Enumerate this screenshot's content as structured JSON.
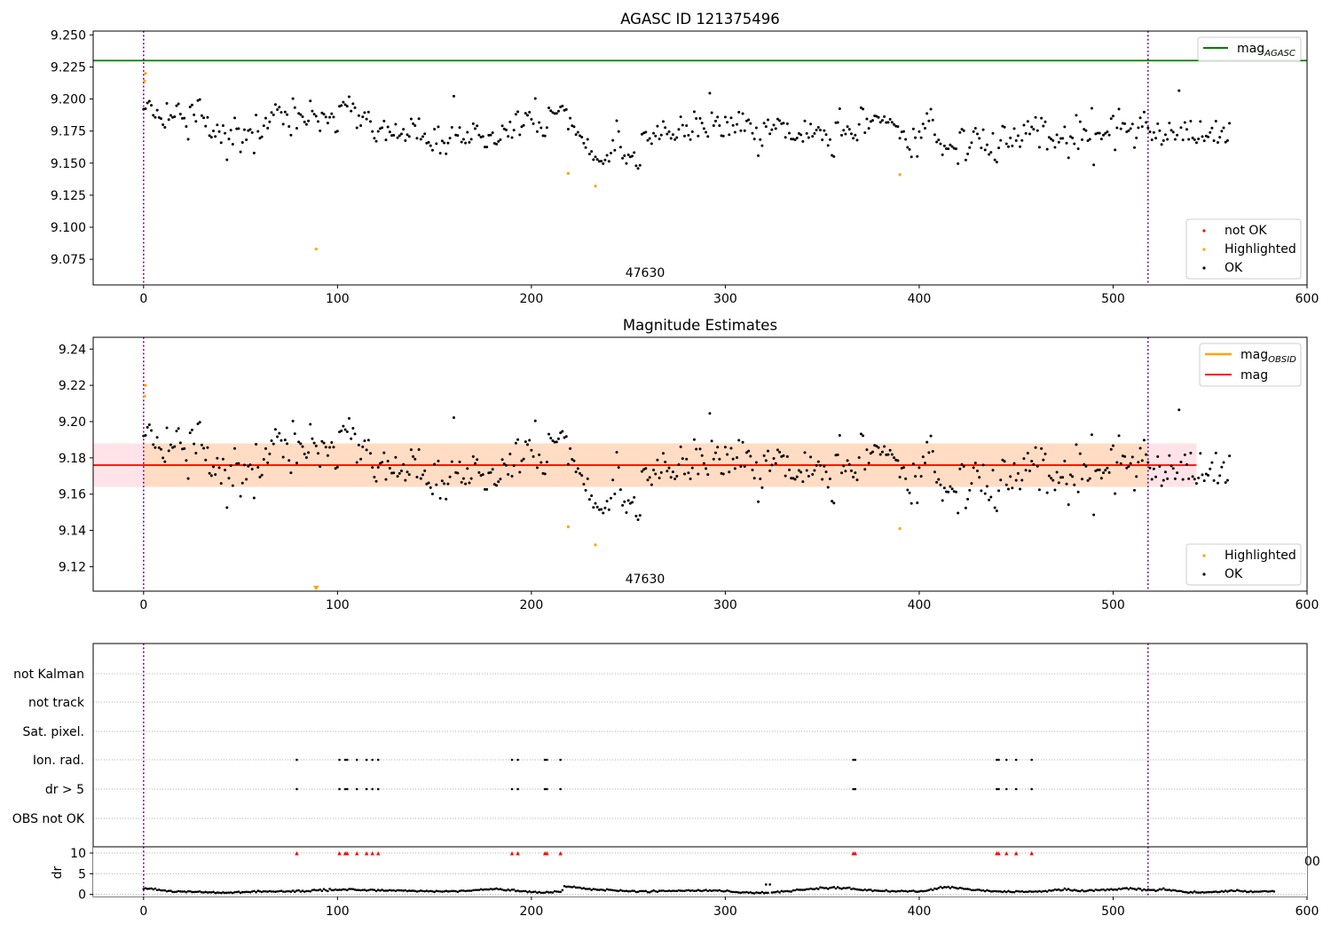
{
  "chart_data": [
    {
      "type": "scatter",
      "title": "AGASC ID 121375496",
      "annotation": "47630",
      "xlim": [
        -26,
        600
      ],
      "ylim": [
        9.055,
        9.253
      ],
      "xticks": [
        "0",
        "100",
        "200",
        "300",
        "400",
        "500",
        "600"
      ],
      "yticks": [
        "9.075",
        "9.100",
        "9.125",
        "9.150",
        "9.175",
        "9.200",
        "9.225",
        "9.250"
      ],
      "vlines": [
        0,
        518
      ],
      "hline": {
        "label_main": "mag",
        "label_sub": "AGASC",
        "value": 9.23,
        "color": "#008000"
      },
      "legend_upper": "top-right",
      "legend_lower": "bottom-right",
      "legend": [
        {
          "label": "not OK",
          "color": "#ff0000"
        },
        {
          "label": "Highlighted",
          "color": "#ffa500"
        },
        {
          "label": "OK",
          "color": "#000000"
        }
      ],
      "highlighted": [
        {
          "x": 0.5,
          "y": 9.214
        },
        {
          "x": 1,
          "y": 9.22
        },
        {
          "x": 89,
          "y": 9.083
        },
        {
          "x": 219,
          "y": 9.142
        },
        {
          "x": 233,
          "y": 9.132
        },
        {
          "x": 390,
          "y": 9.141
        }
      ],
      "ok_series": "magnitudes (see shared_series)"
    },
    {
      "type": "scatter",
      "title": "Magnitude Estimates",
      "annotation": "47630",
      "xlim": [
        -26,
        600
      ],
      "ylim": [
        9.1065,
        9.2465
      ],
      "xticks": [
        "0",
        "100",
        "200",
        "300",
        "400",
        "500",
        "600"
      ],
      "yticks": [
        "9.12",
        "9.14",
        "9.16",
        "9.18",
        "9.20",
        "9.22",
        "9.24"
      ],
      "vlines": [
        0,
        518
      ],
      "legend_upper": "top-right",
      "legend_lower": "bottom-right",
      "lines": [
        {
          "label_main": "mag",
          "label_sub": "OBSID",
          "color": "#ffa500"
        },
        {
          "label_main": "mag",
          "label_sub": "",
          "color": "#ff0000",
          "value": 9.176
        }
      ],
      "band": {
        "low": 9.164,
        "high": 9.188,
        "x0": -26,
        "x1": 543,
        "color": "#ffc0cb"
      },
      "band_inner": {
        "low": 9.164,
        "high": 9.188,
        "x0": 0,
        "x1": 518,
        "color": "#ffdab9"
      },
      "legend": [
        {
          "label": "Highlighted",
          "color": "#ffa500"
        },
        {
          "label": "OK",
          "color": "#000000"
        }
      ],
      "highlighted": [
        {
          "x": 0.5,
          "y": 9.214
        },
        {
          "x": 1,
          "y": 9.22
        },
        {
          "x": 219,
          "y": 9.142
        },
        {
          "x": 233,
          "y": 9.132
        },
        {
          "x": 390,
          "y": 9.141
        }
      ],
      "off_scale_marker": {
        "x": 89,
        "direction": "down"
      }
    },
    {
      "type": "scatter",
      "xlim": [
        -26,
        600
      ],
      "xticks": [
        "0",
        "100",
        "200",
        "300",
        "400",
        "500",
        "600"
      ],
      "vlines": [
        0,
        518
      ],
      "categories": [
        "not Kalman",
        "not track",
        "Sat. pixel.",
        "Ion. rad.",
        "dr > 5",
        "OBS not OK"
      ],
      "flag_x": [
        79,
        101,
        104,
        105,
        110,
        115,
        118,
        121,
        190,
        193,
        207,
        208,
        215,
        366,
        367,
        440,
        441,
        445,
        450,
        458
      ],
      "flags": {
        "Ion. rad.": true,
        "dr > 5": true
      }
    },
    {
      "type": "scatter",
      "ylabel": "dr",
      "xlim": [
        -26,
        600
      ],
      "ylim": [
        -0.5,
        11.5
      ],
      "yticks": [
        "0",
        "5",
        "10"
      ],
      "overflow_markers_at": 10,
      "stray_tick_label": "00",
      "dr_outlier": {
        "x": 321,
        "y": 2.4
      }
    }
  ],
  "shared_series": {
    "n_points": 518,
    "magnitudes": [
      9.1921,
      9.1924,
      9.1969,
      9.1983,
      9.1951,
      9.1873,
      9.1857,
      9.1913,
      9.1856,
      9.1847,
      9.18,
      9.1779,
      9.1966,
      9.1839,
      9.1872,
      9.1857,
      9.1862,
      9.1948,
      9.1962,
      9.1883,
      9.1849,
      9.1851,
      9.1786,
      9.1686,
      9.1938,
      9.1954,
      9.1877,
      9.1826,
      9.1988,
      9.1996,
      9.1871,
      9.1853,
      9.1788,
      9.1857,
      9.1715,
      9.1702,
      9.1751,
      9.1708,
      9.1798,
      9.1746,
      9.1659,
      9.1793,
      9.1733,
      9.1526,
      9.1688,
      9.1757,
      9.1647,
      9.1852,
      9.1768,
      9.1769,
      9.1588,
      9.1661,
      9.1761,
      9.1682,
      9.1754,
      9.1762,
      9.1738,
      9.1579,
      9.1875,
      9.1748,
      9.1694,
      9.1705,
      9.1792,
      9.1851,
      9.1773,
      9.1822,
      9.1895,
      9.1877,
      9.1957,
      9.1917,
      9.1936,
      9.1896,
      9.1804,
      9.1899,
      9.1878,
      9.1786,
      9.1718,
      9.2003,
      9.1933,
      9.1772,
      9.1888,
      9.1878,
      9.1862,
      9.1821,
      9.1802,
      9.1829,
      9.1985,
      9.1906,
      9.1882,
      9.1866,
      9.1825,
      9.1752,
      9.1891,
      9.1882,
      9.1859,
      9.1813,
      9.1858,
      9.1885,
      9.1859,
      9.1742,
      9.1749,
      9.1943,
      9.1949,
      9.1975,
      9.1956,
      9.1944,
      9.2018,
      9.1906,
      9.1963,
      9.1932,
      9.1775,
      9.1871,
      9.1793,
      9.1861,
      9.1894,
      9.1844,
      9.1898,
      9.1825,
      9.1747,
      9.1694,
      9.1671,
      9.1748,
      9.1769,
      9.1776,
      9.1828,
      9.1681,
      9.1782,
      9.1743,
      9.1716,
      9.1717,
      9.1803,
      9.1698,
      9.1714,
      9.1728,
      9.1764,
      9.1676,
      9.1722,
      9.1708,
      9.1845,
      9.1807,
      9.1793,
      9.1694,
      9.1846,
      9.1686,
      9.1707,
      9.1729,
      9.1656,
      9.1662,
      9.1636,
      9.1601,
      9.1765,
      9.1652,
      9.1783,
      9.1577,
      9.1673,
      9.1658,
      9.1573,
      9.1657,
      9.1695,
      9.1779,
      9.2022,
      9.1719,
      9.1716,
      9.1778,
      9.1665,
      9.1686,
      9.1657,
      9.1741,
      9.1662,
      9.1686,
      9.1807,
      9.1769,
      9.1791,
      9.1719,
      9.1703,
      9.1708,
      9.1626,
      9.1626,
      9.1717,
      9.1719,
      9.1737,
      9.1654,
      9.1648,
      9.1669,
      9.1683,
      9.1791,
      9.1767,
      9.1759,
      9.1709,
      9.1821,
      9.1699,
      9.1757,
      9.1881,
      9.1901,
      9.1721,
      9.1784,
      9.1794,
      9.1889,
      9.1873,
      9.1897,
      9.1842,
      9.1807,
      9.2004,
      9.1746,
      9.1817,
      9.1775,
      9.1714,
      9.1712,
      9.1777,
      9.1931,
      9.1909,
      9.1895,
      9.1887,
      9.1888,
      9.1905,
      9.1938,
      9.1946,
      9.1912,
      9.1918,
      9.1765,
      9.1851,
      9.1792,
      9.1784,
      9.1723,
      9.1741,
      9.1714,
      9.1703,
      9.1655,
      9.1621,
      9.1685,
      9.1571,
      9.1591,
      9.1527,
      9.1549,
      9.1529,
      9.1514,
      9.1516,
      9.1496,
      9.1524,
      9.1561,
      9.1514,
      9.1578,
      9.1678,
      9.1601,
      9.1831,
      9.1747,
      9.1625,
      9.1538,
      9.1558,
      9.1498,
      9.1565,
      9.1549,
      9.1555,
      9.1582,
      9.1479,
      9.1459,
      9.1483,
      9.1725,
      9.1736,
      9.1742,
      9.1678,
      9.1692,
      9.1652,
      9.1733,
      9.1711,
      9.1788,
      9.1689,
      9.1719,
      9.1825,
      9.1777,
      9.1727,
      9.1745,
      9.1693,
      9.1723,
      9.1684,
      9.1699,
      9.1763,
      9.1861,
      9.1796,
      9.1711,
      9.1793,
      9.1717,
      9.1684,
      9.1745,
      9.1901,
      9.1848,
      9.1711,
      9.1849,
      9.1813,
      9.1769,
      9.1741,
      9.1708,
      9.2045,
      9.1893,
      9.1793,
      9.1828,
      9.1859,
      9.1793,
      9.1714,
      9.1711,
      9.1859,
      9.1819,
      9.1722,
      9.1853,
      9.1794,
      9.1741,
      9.1802,
      9.1897,
      9.1753,
      9.1886,
      9.1753,
      9.1829,
      9.1838,
      9.1809,
      9.1733,
      9.1688,
      9.1775,
      9.1558,
      9.1684,
      9.1636,
      9.1812,
      9.1785,
      9.1838,
      9.1729,
      9.1761,
      9.1797,
      9.1769,
      9.1844,
      9.1832,
      9.1807,
      9.1812,
      9.1701,
      9.1807,
      9.1734,
      9.1688,
      9.1687,
      9.1682,
      9.1696,
      9.1731,
      9.1721,
      9.1669,
      9.1829,
      9.1731,
      9.1699,
      9.1805,
      9.1709,
      9.1731,
      9.1758,
      9.1779,
      9.1758,
      9.1682,
      9.1754,
      9.1723,
      9.1638,
      9.1684,
      9.1561,
      9.1551,
      9.1815,
      9.1817,
      9.1924,
      9.1717,
      9.1756,
      9.1727,
      9.1785,
      9.1764,
      9.1729,
      9.1694,
      9.1718,
      9.1679,
      9.1802,
      9.1932,
      9.1922,
      9.1737,
      9.1845,
      9.1771,
      9.1825,
      9.1833,
      9.1869,
      9.1865,
      9.1857,
      9.1819,
      9.1833,
      9.1863,
      9.1817,
      9.1818,
      9.1842,
      9.1819,
      9.1801,
      9.1788,
      9.1785,
      9.1694,
      9.1743,
      9.1747,
      9.1685,
      9.1623,
      9.1607,
      9.1549,
      9.1767,
      9.1698,
      9.1552,
      9.1746,
      9.1698,
      9.1806,
      9.1772,
      9.1887,
      9.1829,
      9.1921,
      9.1836,
      9.1722,
      9.1665,
      9.1681,
      9.1651,
      9.1565,
      9.1634,
      9.1613,
      9.1612,
      9.1642,
      9.1629,
      9.1615,
      9.1612,
      9.1496,
      9.1739,
      9.1764,
      9.1753,
      9.1524,
      9.1572,
      9.1621,
      9.1659,
      9.1746,
      9.1772,
      9.1728,
      9.1693,
      9.1619,
      9.1761,
      9.1603,
      9.1643,
      9.1568,
      9.1584,
      9.1732,
      9.1525,
      9.1508,
      9.1619,
      9.1678,
      9.1788,
      9.1781,
      9.1651,
      9.1628,
      9.1697,
      9.1634,
      9.1769,
      9.1676,
      9.1714,
      9.1628,
      9.1677,
      9.1796,
      9.1732,
      9.1826,
      9.1728,
      9.1782,
      9.1764,
      9.1857,
      9.1754,
      9.1624,
      9.1851,
      9.1789,
      9.1822,
      9.1608,
      9.1701,
      9.1688,
      9.1676,
      9.1623,
      9.1721,
      9.1663,
      9.1692,
      9.1693,
      9.1783,
      9.1656,
      9.1542,
      9.1707,
      9.1697,
      9.1651,
      9.1873,
      9.1612,
      9.1823,
      9.1683,
      9.1764,
      9.1754,
      9.1675,
      9.1686,
      9.1928,
      9.1486,
      9.1728,
      9.1734,
      9.1734,
      9.1688,
      9.1718,
      9.1732,
      9.1744,
      9.1719,
      9.1847,
      9.1867,
      9.1603,
      9.1775,
      9.1922,
      9.1768,
      9.1811,
      9.1807,
      9.1744,
      9.1753,
      9.1769,
      9.1805,
      9.1621,
      9.1697,
      9.1776,
      9.1853,
      9.1785,
      9.1898,
      9.1818,
      9.1775,
      9.1744,
      9.1682,
      9.1739,
      9.1695,
      9.1807,
      9.1753,
      9.1646,
      9.1676,
      9.1722,
      9.1685,
      9.1813,
      9.1756,
      9.1742,
      9.1685,
      9.1718,
      9.2065,
      9.1777,
      9.1681,
      9.1817,
      9.1763,
      9.1685,
      9.1827,
      9.1697,
      9.1683,
      9.1659,
      9.1689,
      9.1825,
      9.1707,
      9.1674,
      9.1711,
      9.1704,
      9.1739,
      9.1774,
      9.1675,
      9.1827,
      9.1661,
      9.1702,
      9.1749,
      9.1775,
      9.1664,
      9.1676,
      9.1811
    ],
    "dr": [
      1.31,
      1.49,
      1.35,
      1.38,
      1.45,
      1.22,
      1.41,
      1.05,
      1.14,
      0.97,
      0.98,
      0.96,
      0.74,
      0.86,
      0.87,
      0.61,
      0.59,
      0.65,
      0.81,
      0.71,
      0.67,
      0.71,
      0.54,
      0.76,
      0.76,
      0.58,
      0.58,
      0.61,
      0.65,
      0.72,
      0.52,
      0.47,
      0.61,
      0.47,
      0.51,
      0.5,
      0.61,
      0.34,
      0.45,
      0.44,
      0.35,
      0.5,
      0.36,
      0.42,
      0.44,
      0.48,
      0.35,
      0.54,
      0.58,
      0.66,
      0.39,
      0.55,
      0.55,
      0.63,
      0.6,
      0.54,
      0.7,
      0.84,
      0.54,
      0.87,
      0.73,
      0.6,
      0.77,
      0.72,
      0.66,
      0.8,
      0.7,
      0.7,
      0.63,
      0.72,
      0.78,
      0.86,
      0.68,
      0.65,
      0.77,
      0.76,
      0.66,
      0.92,
      0.63,
      0.91,
      0.99,
      0.68,
      0.87,
      0.65,
      0.8,
      0.8,
      0.72,
      1.03,
      1.11,
      0.99,
      1.01,
      1.18,
      0.85,
      1.29,
      0.99,
      0.8,
      1.34,
      1.03,
      1.04,
      1.18,
      1.06,
      1.12,
      1.1,
      1.22,
      1.19,
      1.03,
      1.32,
      1.32,
      1.28,
      1.14,
      1.06,
      1.06,
      0.99,
      1.08,
      1.1,
      0.92,
      1.02,
      1.15,
      1.15,
      1.06,
      0.82,
      1.1,
      0.92,
      1.11,
      0.89,
      0.91,
      0.91,
      1.05,
      0.94,
      0.99,
      0.83,
      1.02,
      0.98,
      0.95,
      0.91,
      0.99,
      0.79,
      0.9,
      0.85,
      0.9,
      0.82,
      0.7,
      0.78,
      0.93,
      0.81,
      0.75,
      0.87,
      0.73,
      0.83,
      0.74,
      0.61,
      0.85,
      0.78,
      0.73,
      0.67,
      0.72,
      0.85,
      0.71,
      0.76,
      0.82,
      0.82,
      0.78,
      0.62,
      0.82,
      0.93,
      0.91,
      0.8,
      0.88,
      0.88,
      0.88,
      1.02,
      1.08,
      1.08,
      1.08,
      1.25,
      1.11,
      1.22,
      1.2,
      1.18,
      1.33,
      1.22,
      1.3,
      1.44,
      1.23,
      1.3,
      1.16,
      1.02,
      0.95,
      1.17,
      0.94,
      1.15,
      1.16,
      0.79,
      0.91,
      0.74,
      0.76,
      0.81,
      0.81,
      0.54,
      0.72,
      0.52,
      0.61,
      0.67,
      0.39,
      0.59,
      0.4,
      0.41,
      0.43,
      0.65,
      0.47,
      0.51,
      0.46,
      0.78,
      0.7,
      0.64,
      0.6,
      1.04,
      2.01,
      1.84,
      1.91,
      1.82,
      1.75,
      1.9,
      1.65,
      1.66,
      1.66,
      1.42,
      1.53,
      1.33,
      1.32,
      1.36,
      1.07,
      1.31,
      1.23,
      1.12,
      1.09,
      1.19,
      1.07,
      0.93,
      1.27,
      1.13,
      1.1,
      1.02,
      0.97,
      0.89,
      0.82,
      1.05,
      0.86,
      0.81,
      0.86,
      0.74,
      0.75,
      0.88,
      0.85,
      0.59,
      0.62,
      0.81,
      0.82,
      0.79,
      0.83,
      0.54,
      0.52,
      0.74,
      0.95,
      0.75,
      0.62,
      0.87,
      0.88,
      0.92,
      0.8,
      0.81,
      0.88,
      0.8,
      0.89,
      0.84,
      0.83,
      0.97,
      0.9,
      0.86,
      0.83,
      0.98,
      1.02,
      0.87,
      0.95,
      0.83,
      0.87,
      1.07,
      0.9,
      0.81,
      0.95,
      1.1,
      0.81,
      0.99,
      0.85,
      0.96,
      0.96,
      0.9,
      1.02,
      0.81,
      0.73,
      0.77,
      0.97,
      0.8,
      0.64,
      0.6,
      0.57,
      0.56,
      0.45,
      0.4,
      0.51,
      0.48,
      0.57,
      0.4,
      0.51,
      0.34,
      0.27,
      0.49,
      0.39,
      0.34,
      0.59,
      0.31,
      0.42,
      0.39,
      2.4,
      0.46,
      0.51,
      0.55,
      0.73,
      0.47,
      0.82,
      0.7,
      0.78,
      0.79,
      0.73,
      0.69,
      0.98,
      1.0,
      1.2,
      1.12,
      1.11,
      1.1,
      1.12,
      1.27,
      1.26,
      1.43,
      1.28,
      1.28,
      1.47,
      1.3,
      1.7,
      1.63,
      1.53,
      1.55,
      1.34,
      1.59,
      1.66,
      1.79,
      1.43,
      1.76,
      1.51,
      1.36,
      1.55,
      1.51,
      1.58,
      1.65,
      1.27,
      1.42,
      1.28,
      1.2,
      1.14,
      1.09,
      1.0,
      1.18,
      0.98,
      1.13,
      1.11,
      0.8,
      0.98,
      0.93,
      0.87,
      0.84,
      0.82,
      0.81,
      1.04,
      0.76,
      0.67,
      0.84,
      0.79,
      0.67,
      0.8,
      0.77,
      0.91,
      0.78,
      0.81,
      0.68,
      0.8,
      0.83,
      0.91,
      0.69,
      0.63,
      0.71,
      0.82,
      0.77,
      0.81,
      0.92,
      1.03,
      1.27,
      1.05,
      1.42,
      1.31,
      1.55,
      1.84,
      1.55,
      1.78,
      1.72,
      1.84,
      1.52,
      1.83,
      1.66,
      1.55,
      1.41,
      1.6,
      1.51,
      1.34,
      1.32,
      1.33,
      1.23,
      1.05,
      1.04,
      1.05,
      1.15,
      1.11,
      0.94,
      0.98,
      0.78,
      1.02,
      0.86,
      0.71,
      0.74,
      0.81,
      0.73,
      0.74,
      0.7,
      0.58,
      0.77,
      0.56,
      0.83,
      0.61,
      0.56,
      0.54,
      0.8,
      0.76,
      0.68,
      0.76,
      0.6,
      0.64,
      0.62,
      0.78,
      0.64,
      0.67,
      0.73,
      0.66,
      0.81,
      0.65,
      0.78,
      0.84,
      0.68,
      1.0,
      0.88,
      0.98,
      1.19,
      1.09,
      1.2,
      0.95,
      1.05,
      1.42,
      1.12,
      1.31,
      1.02,
      0.92,
      1.1,
      0.95,
      0.82,
      0.77,
      1.05,
      0.74,
      0.79,
      0.92,
      1.06,
      1.04,
      0.84,
      1.16,
      1.03,
      1.01,
      1.16,
      1.19,
      0.96,
      1.23,
      1.12,
      1.29,
      1.11,
      1.21,
      1.12,
      1.4,
      1.27,
      1.44,
      1.51,
      1.52,
      1.25,
      1.55,
      1.39,
      1.33,
      1.14,
      1.44,
      1.34,
      0.97,
      1.24,
      0.99,
      1.23,
      1.07,
      1.07,
      1.09,
      0.82,
      1.0,
      1.25,
      1.21,
      1.47,
      1.11,
      1.06,
      1.12,
      0.92,
      1.04,
      0.98,
      0.8,
      0.82,
      0.81,
      0.63,
      0.57,
      0.5,
      0.39,
      0.58,
      0.46,
      0.71,
      0.47,
      0.45,
      0.45,
      0.57,
      0.45,
      0.51,
      0.55,
      0.56,
      0.55,
      0.63,
      0.69,
      0.54,
      0.59,
      0.79,
      0.65,
      0.89,
      0.67,
      0.87,
      0.98,
      0.83,
      0.81,
      1.06,
      0.9,
      0.78,
      0.72,
      0.84,
      0.58,
      0.61,
      0.8,
      0.55,
      0.67,
      0.68,
      0.65,
      0.69,
      0.76,
      0.81,
      0.76,
      0.67,
      0.73,
      0.84,
      0.71
    ]
  }
}
